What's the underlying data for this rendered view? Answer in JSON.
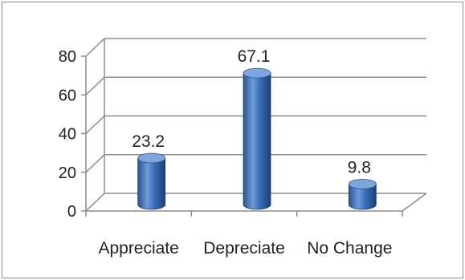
{
  "chart_data": {
    "type": "bar",
    "style": "3d-cylinder",
    "categories": [
      "Appreciate",
      "Depreciate",
      "No Change"
    ],
    "values": [
      23.2,
      67.1,
      9.8
    ],
    "data_labels": [
      "23.2",
      "67.1",
      "9.8"
    ],
    "title": "",
    "xlabel": "",
    "ylabel": "",
    "ylim": [
      0,
      80
    ],
    "yticks": [
      "0",
      "20",
      "40",
      "60",
      "80"
    ],
    "grid": true,
    "legend": "none",
    "colors": {
      "bar": "#3a6fb8",
      "bar_light": "#7ea6de",
      "bar_dark": "#1f3f73",
      "grid": "#8c8c8c",
      "frame": "#8a8a8a"
    }
  }
}
